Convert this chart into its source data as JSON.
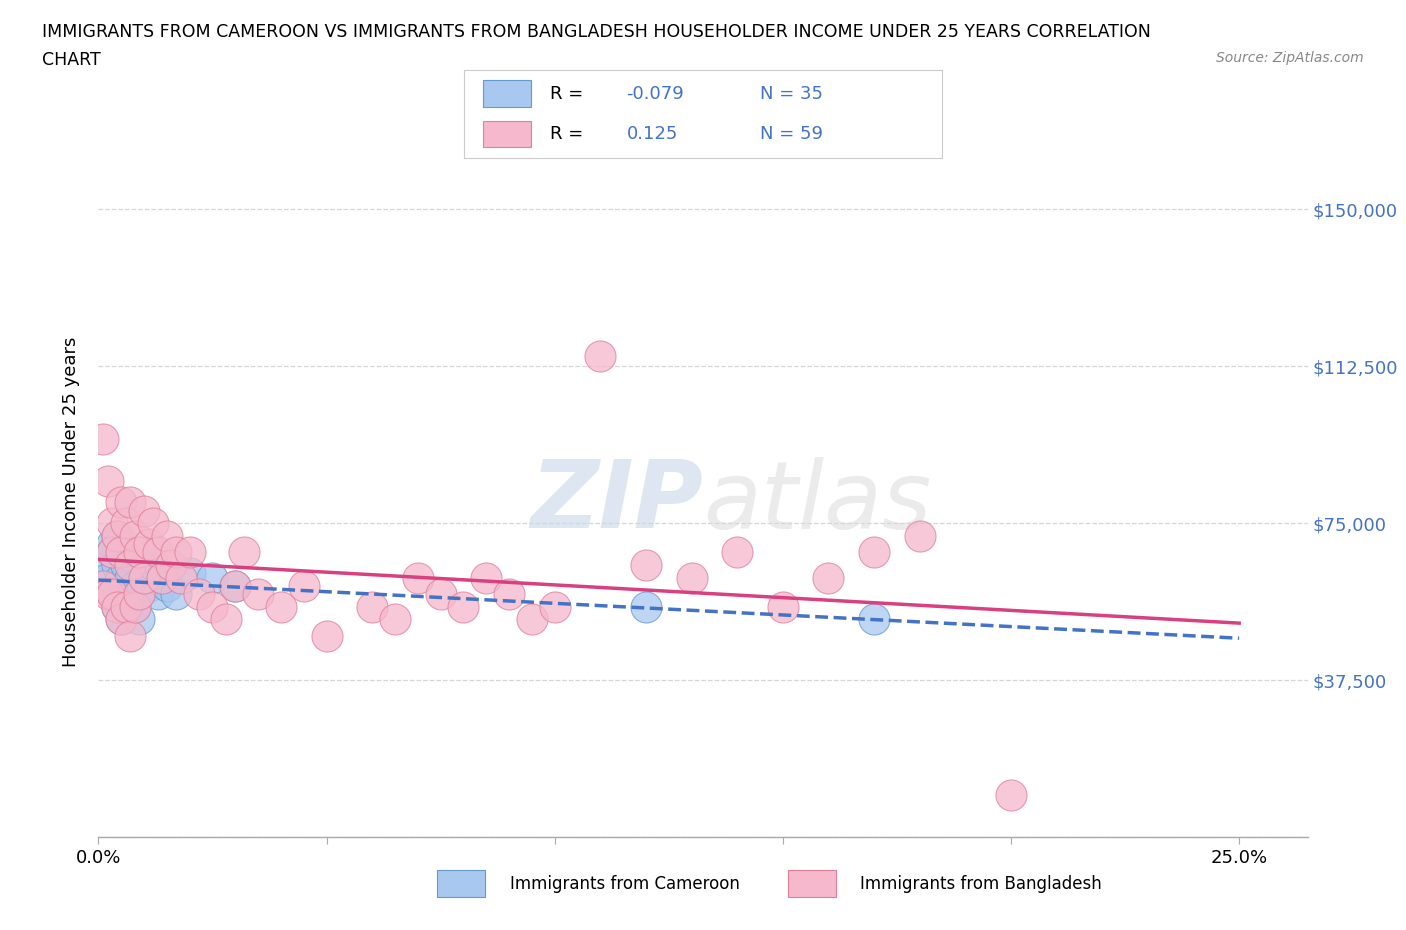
{
  "title_line1": "IMMIGRANTS FROM CAMEROON VS IMMIGRANTS FROM BANGLADESH HOUSEHOLDER INCOME UNDER 25 YEARS CORRELATION",
  "title_line2": "CHART",
  "source_text": "Source: ZipAtlas.com",
  "ylabel": "Householder Income Under 25 years",
  "y_ticks": [
    0,
    37500,
    75000,
    112500,
    150000
  ],
  "y_tick_labels": [
    "",
    "$37,500",
    "$75,000",
    "$112,500",
    "$150,000"
  ],
  "xlim": [
    0.0,
    0.265
  ],
  "ylim": [
    5000,
    160000
  ],
  "watermark_zip": "ZIP",
  "watermark_atlas": "atlas",
  "color_cameroon_fill": "#a8c8f0",
  "color_cameroon_edge": "#6699cc",
  "color_bangladesh_fill": "#f5b8cc",
  "color_bangladesh_edge": "#e0809a",
  "line_color_cameroon": "#4472c4",
  "line_color_bangladesh": "#d94080",
  "grid_color": "#cccccc",
  "cameroon_x": [
    0.001,
    0.002,
    0.002,
    0.003,
    0.003,
    0.003,
    0.004,
    0.004,
    0.004,
    0.004,
    0.005,
    0.005,
    0.005,
    0.005,
    0.006,
    0.006,
    0.006,
    0.007,
    0.007,
    0.008,
    0.008,
    0.009,
    0.009,
    0.01,
    0.011,
    0.012,
    0.013,
    0.014,
    0.015,
    0.017,
    0.02,
    0.025,
    0.03,
    0.12,
    0.17
  ],
  "cameroon_y": [
    60000,
    65000,
    62000,
    70000,
    68000,
    58000,
    72000,
    65000,
    60000,
    55000,
    68000,
    62000,
    58000,
    52000,
    65000,
    60000,
    55000,
    62000,
    58000,
    60000,
    55000,
    58000,
    52000,
    62000,
    60000,
    65000,
    58000,
    62000,
    60000,
    58000,
    63000,
    62000,
    60000,
    55000,
    52000
  ],
  "bangladesh_x": [
    0.001,
    0.001,
    0.002,
    0.002,
    0.003,
    0.003,
    0.003,
    0.004,
    0.004,
    0.005,
    0.005,
    0.005,
    0.006,
    0.006,
    0.007,
    0.007,
    0.007,
    0.008,
    0.008,
    0.009,
    0.009,
    0.01,
    0.01,
    0.011,
    0.012,
    0.013,
    0.014,
    0.015,
    0.016,
    0.017,
    0.018,
    0.02,
    0.022,
    0.025,
    0.028,
    0.03,
    0.032,
    0.035,
    0.04,
    0.045,
    0.05,
    0.06,
    0.065,
    0.07,
    0.075,
    0.08,
    0.085,
    0.09,
    0.095,
    0.1,
    0.11,
    0.12,
    0.13,
    0.14,
    0.15,
    0.16,
    0.17,
    0.18,
    0.2
  ],
  "bangladesh_y": [
    95000,
    60000,
    85000,
    58000,
    75000,
    68000,
    58000,
    72000,
    55000,
    80000,
    68000,
    52000,
    75000,
    55000,
    80000,
    65000,
    48000,
    72000,
    55000,
    68000,
    58000,
    78000,
    62000,
    70000,
    75000,
    68000,
    62000,
    72000,
    65000,
    68000,
    62000,
    68000,
    58000,
    55000,
    52000,
    60000,
    68000,
    58000,
    55000,
    60000,
    48000,
    55000,
    52000,
    62000,
    58000,
    55000,
    62000,
    58000,
    52000,
    55000,
    115000,
    65000,
    62000,
    68000,
    55000,
    62000,
    68000,
    72000,
    10000
  ],
  "legend_r1_label": "R = ",
  "legend_r1_val": "-0.079",
  "legend_n1": "N = 35",
  "legend_r2_label": "R =   ",
  "legend_r2_val": "0.125",
  "legend_n2": "N = 59",
  "bottom_legend_cameroon": "Immigrants from Cameroon",
  "bottom_legend_bangladesh": "Immigrants from Bangladesh"
}
